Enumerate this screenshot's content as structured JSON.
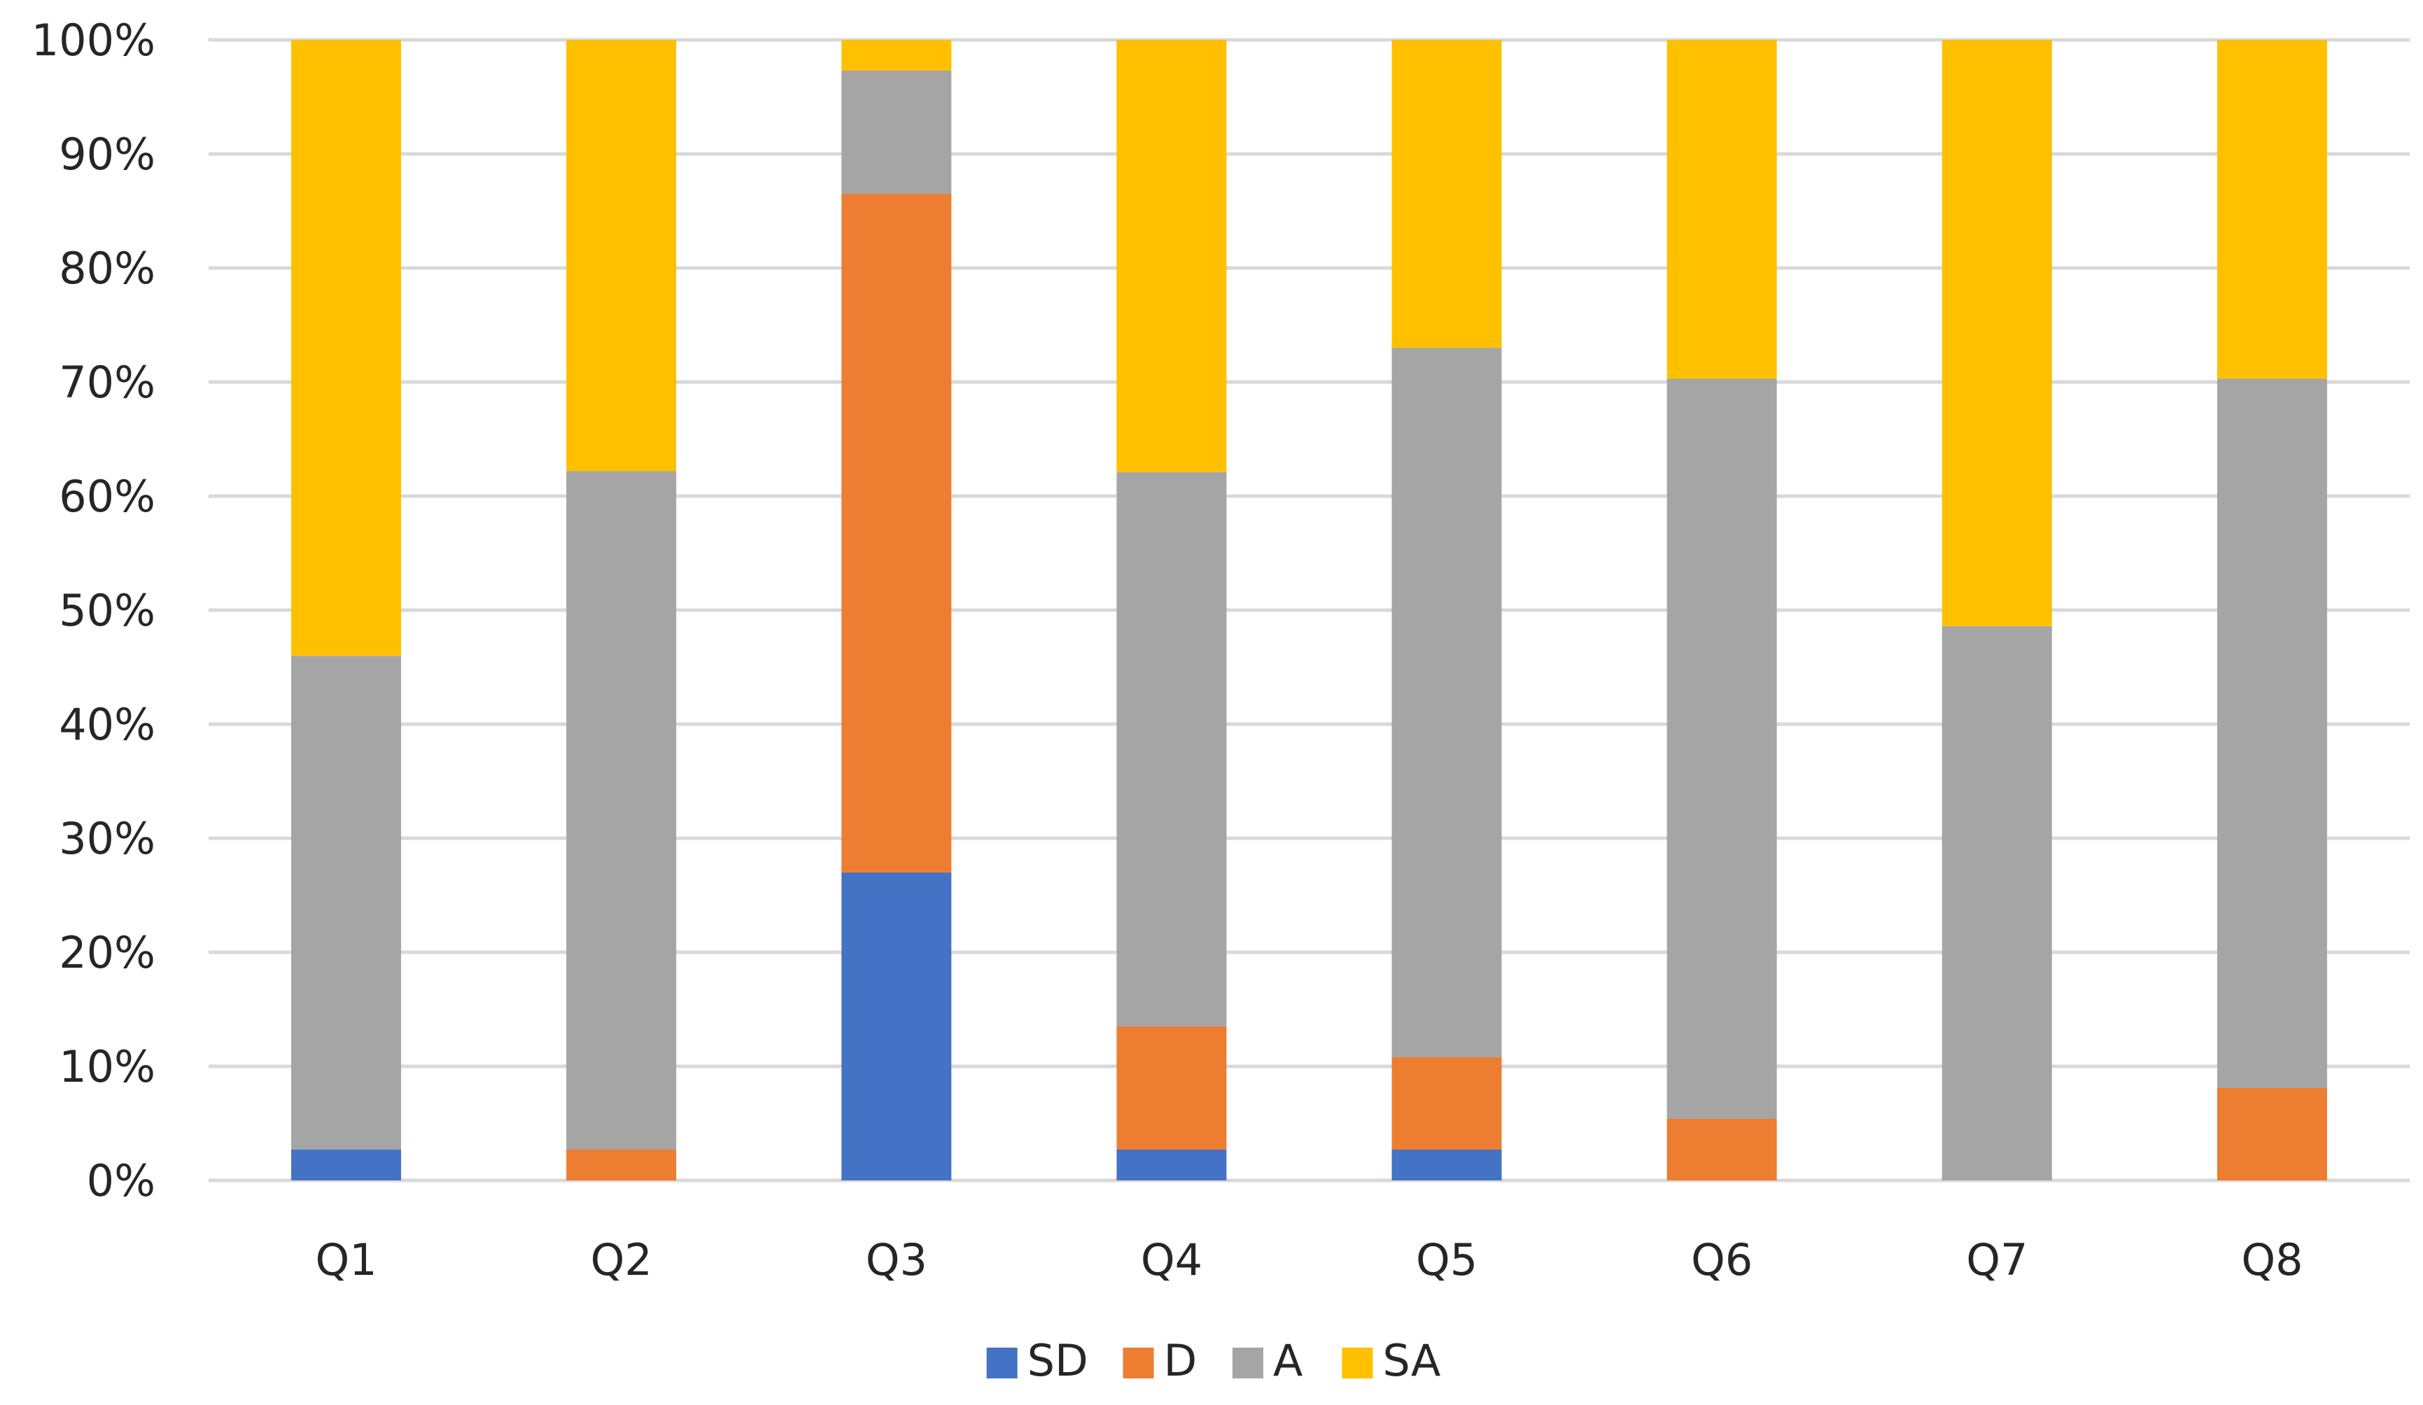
{
  "chart_data": {
    "type": "bar",
    "stacked": true,
    "percent_stacked": true,
    "title": "",
    "xlabel": "",
    "ylabel": "",
    "ylim": [
      0,
      100
    ],
    "y_tick_values": [
      0,
      10,
      20,
      30,
      40,
      50,
      60,
      70,
      80,
      90,
      100
    ],
    "y_tick_labels": [
      "0%",
      "10%",
      "20%",
      "30%",
      "40%",
      "50%",
      "60%",
      "70%",
      "80%",
      "90%",
      "100%"
    ],
    "grid": true,
    "legend_position": "bottom",
    "categories": [
      "Q1",
      "Q2",
      "Q3",
      "Q4",
      "Q5",
      "Q6",
      "Q7",
      "Q8"
    ],
    "series": [
      {
        "name": "SD",
        "color": "#4472C4",
        "values": [
          2.7,
          0,
          27.0,
          2.7,
          2.7,
          0,
          0,
          0
        ]
      },
      {
        "name": "D",
        "color": "#ED7D31",
        "values": [
          0,
          2.7,
          59.5,
          10.8,
          8.1,
          5.4,
          0,
          8.1
        ]
      },
      {
        "name": "A",
        "color": "#A5A5A5",
        "values": [
          43.3,
          59.5,
          10.8,
          48.6,
          62.2,
          64.9,
          48.6,
          62.2
        ]
      },
      {
        "name": "SA",
        "color": "#FFC000",
        "values": [
          54.0,
          37.8,
          2.7,
          37.9,
          27.0,
          29.7,
          51.4,
          29.7
        ]
      }
    ]
  }
}
